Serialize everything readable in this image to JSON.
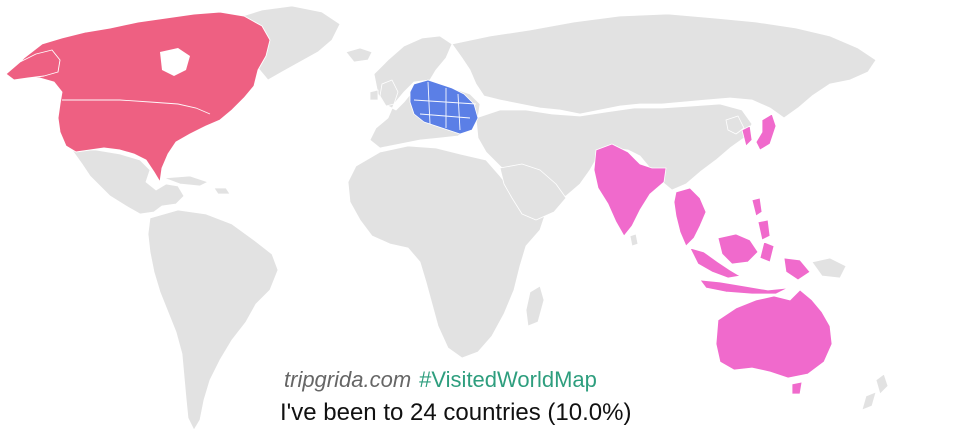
{
  "map": {
    "colors": {
      "unvisited": "#e2e2e2",
      "north_america": "#ee6082",
      "europe": "#5b7fe6",
      "asia_oceania": "#f06acc",
      "border": "#ffffff"
    },
    "visited_regions": [
      "North America",
      "Europe",
      "Asia",
      "Oceania"
    ]
  },
  "caption": {
    "site": "tripgrida.com",
    "hashtag": "#VisitedWorldMap",
    "hashtag_color": "#2e9e7e",
    "summary": "I've been to 24 countries (10.0%)"
  }
}
